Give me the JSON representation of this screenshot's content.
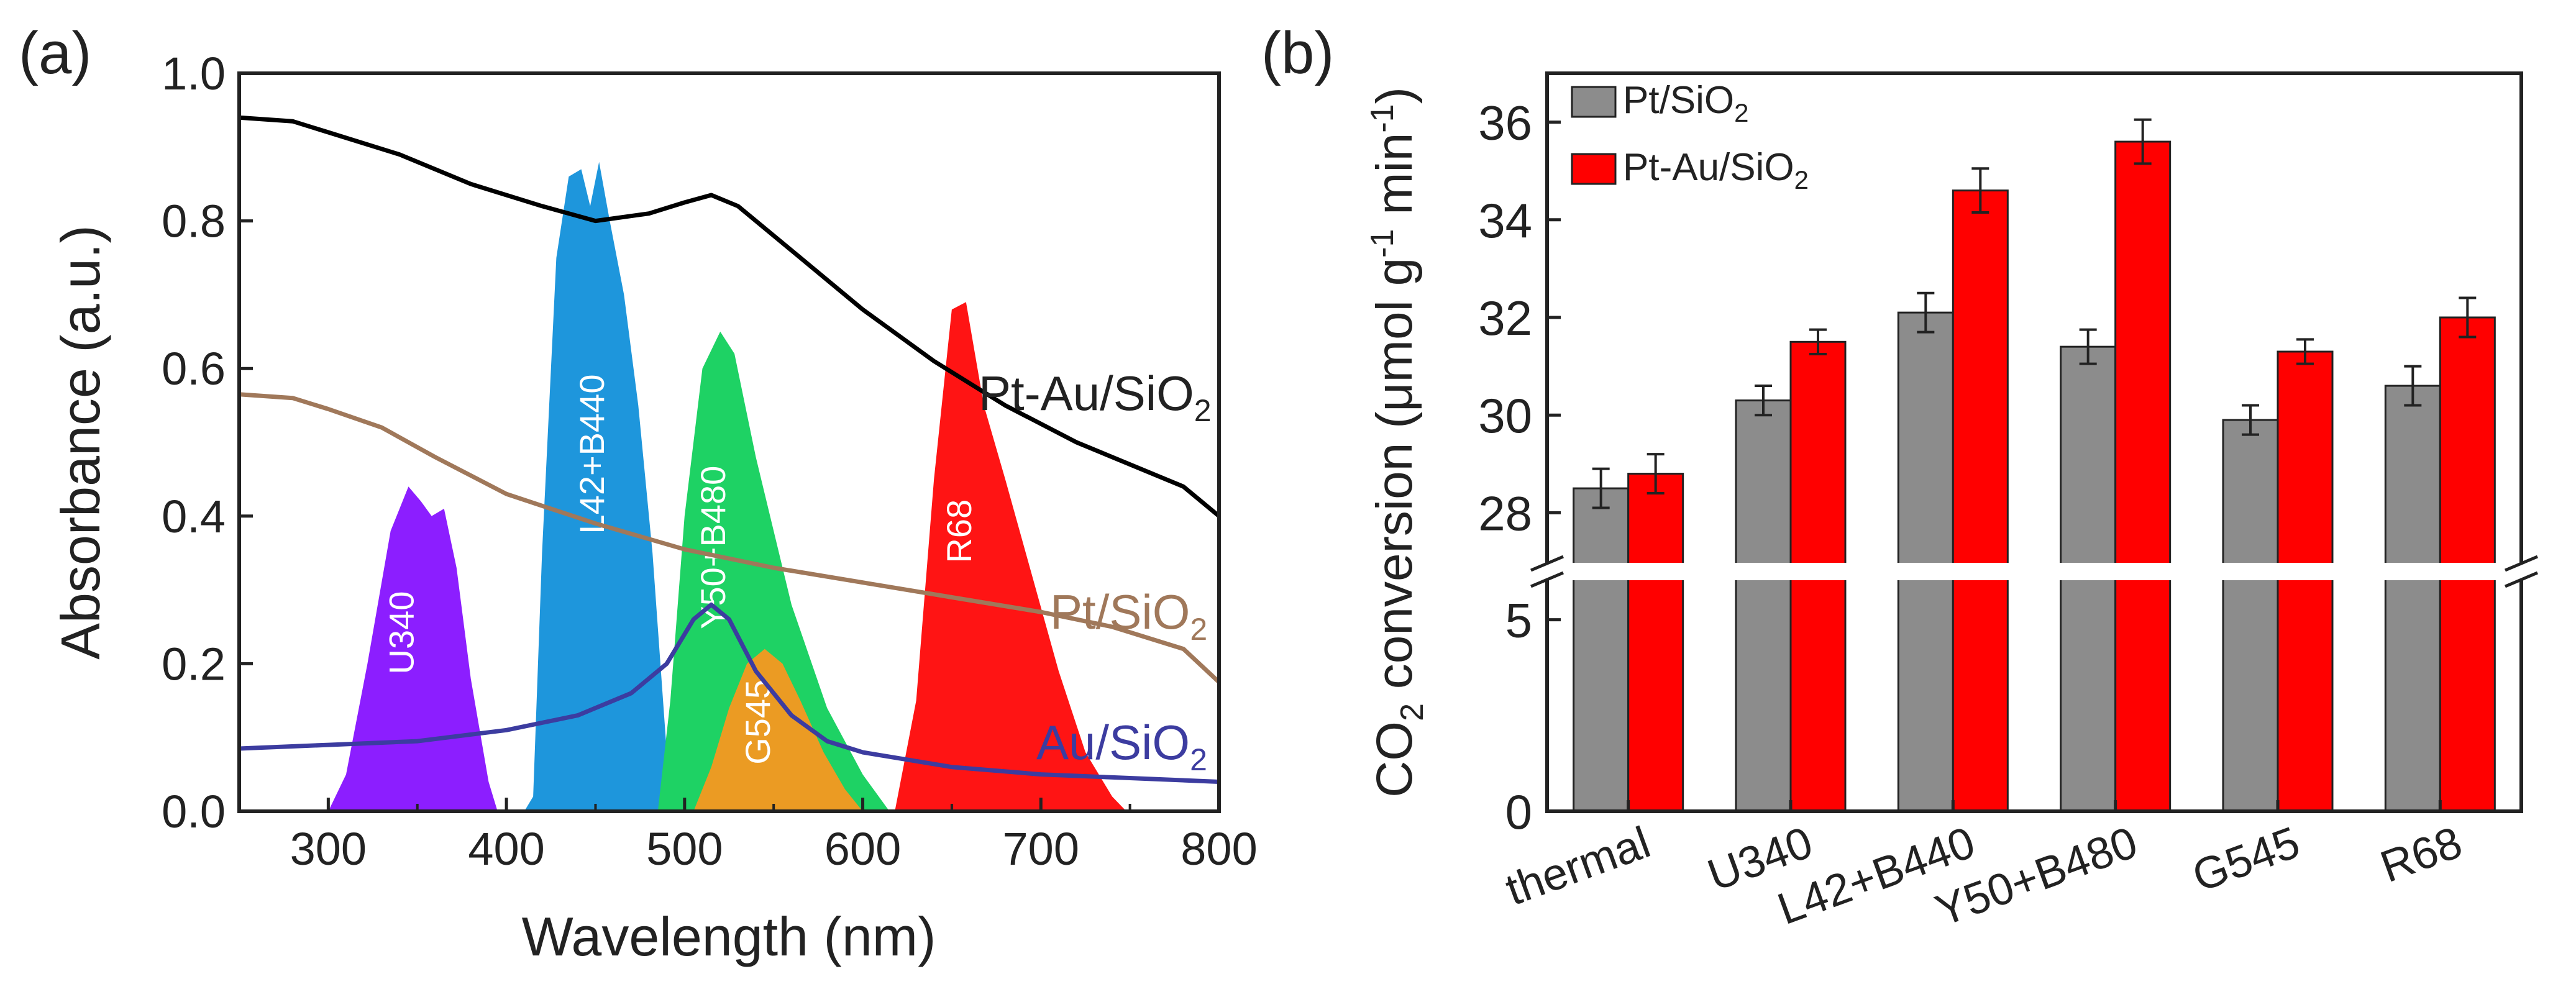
{
  "colors": {
    "pt_au": "#000000",
    "pt": "#A0785A",
    "au": "#3C3CA0",
    "bar_pt": "#8C8C8C",
    "bar_pt_au": "#FF0000"
  },
  "chart_data": [
    {
      "type": "line",
      "panel_label": "(a)",
      "xlabel": "Wavelength (nm)",
      "ylabel": "Absorbance (a.u.)",
      "xlim": [
        250,
        800
      ],
      "ylim": [
        0,
        1.0
      ],
      "xticks": [
        "300",
        "400",
        "500",
        "600",
        "700",
        "800"
      ],
      "yticks": [
        "0.0",
        "0.2",
        "0.4",
        "0.6",
        "0.8",
        "1.0"
      ],
      "series": [
        {
          "name": "Pt-Au/SiO2",
          "label_main": "Pt-Au/SiO",
          "label_sub": "2",
          "color": "#000000",
          "points": [
            [
              250,
              0.94
            ],
            [
              280,
              0.935
            ],
            [
              300,
              0.92
            ],
            [
              340,
              0.89
            ],
            [
              380,
              0.85
            ],
            [
              420,
              0.82
            ],
            [
              450,
              0.8
            ],
            [
              480,
              0.81
            ],
            [
              500,
              0.825
            ],
            [
              515,
              0.835
            ],
            [
              530,
              0.82
            ],
            [
              560,
              0.76
            ],
            [
              600,
              0.68
            ],
            [
              640,
              0.61
            ],
            [
              680,
              0.55
            ],
            [
              720,
              0.5
            ],
            [
              760,
              0.46
            ],
            [
              780,
              0.44
            ],
            [
              800,
              0.4
            ]
          ]
        },
        {
          "name": "Pt/SiO2",
          "label_main": "Pt/SiO",
          "label_sub": "2",
          "color": "#A0785A",
          "points": [
            [
              250,
              0.565
            ],
            [
              280,
              0.56
            ],
            [
              300,
              0.545
            ],
            [
              330,
              0.52
            ],
            [
              360,
              0.48
            ],
            [
              400,
              0.43
            ],
            [
              450,
              0.39
            ],
            [
              500,
              0.355
            ],
            [
              550,
              0.33
            ],
            [
              600,
              0.31
            ],
            [
              650,
              0.29
            ],
            [
              700,
              0.27
            ],
            [
              740,
              0.25
            ],
            [
              780,
              0.22
            ],
            [
              800,
              0.175
            ]
          ]
        },
        {
          "name": "Au/SiO2",
          "label_main": "Au/SiO",
          "label_sub": "2",
          "color": "#3C3CA0",
          "points": [
            [
              250,
              0.085
            ],
            [
              300,
              0.09
            ],
            [
              350,
              0.095
            ],
            [
              400,
              0.11
            ],
            [
              440,
              0.13
            ],
            [
              470,
              0.16
            ],
            [
              490,
              0.2
            ],
            [
              505,
              0.26
            ],
            [
              515,
              0.28
            ],
            [
              525,
              0.26
            ],
            [
              540,
              0.19
            ],
            [
              560,
              0.13
            ],
            [
              580,
              0.095
            ],
            [
              600,
              0.08
            ],
            [
              650,
              0.06
            ],
            [
              700,
              0.05
            ],
            [
              750,
              0.045
            ],
            [
              800,
              0.04
            ]
          ]
        }
      ],
      "light_sources": [
        {
          "name": "U340",
          "color": "#8C1EFF",
          "points": [
            [
              300,
              0
            ],
            [
              310,
              0.05
            ],
            [
              322,
              0.2
            ],
            [
              335,
              0.38
            ],
            [
              345,
              0.44
            ],
            [
              352,
              0.42
            ],
            [
              358,
              0.4
            ],
            [
              365,
              0.41
            ],
            [
              372,
              0.33
            ],
            [
              380,
              0.18
            ],
            [
              390,
              0.04
            ],
            [
              395,
              0
            ]
          ]
        },
        {
          "name": "L42+B440",
          "color": "#1E96DC",
          "points": [
            [
              410,
              0
            ],
            [
              415,
              0.02
            ],
            [
              420,
              0.35
            ],
            [
              428,
              0.75
            ],
            [
              435,
              0.86
            ],
            [
              442,
              0.87
            ],
            [
              447,
              0.82
            ],
            [
              452,
              0.88
            ],
            [
              458,
              0.8
            ],
            [
              466,
              0.7
            ],
            [
              474,
              0.55
            ],
            [
              482,
              0.35
            ],
            [
              490,
              0.08
            ],
            [
              495,
              0
            ]
          ]
        },
        {
          "name": "Y50+B480",
          "color": "#1ED264",
          "points": [
            [
              485,
              0
            ],
            [
              492,
              0.15
            ],
            [
              500,
              0.4
            ],
            [
              510,
              0.6
            ],
            [
              520,
              0.65
            ],
            [
              528,
              0.62
            ],
            [
              540,
              0.48
            ],
            [
              560,
              0.28
            ],
            [
              580,
              0.14
            ],
            [
              600,
              0.05
            ],
            [
              615,
              0
            ]
          ]
        },
        {
          "name": "G545",
          "color": "#EB9B23",
          "points": [
            [
              505,
              0
            ],
            [
              515,
              0.06
            ],
            [
              525,
              0.14
            ],
            [
              535,
              0.2
            ],
            [
              545,
              0.22
            ],
            [
              555,
              0.2
            ],
            [
              565,
              0.15
            ],
            [
              578,
              0.08
            ],
            [
              590,
              0.03
            ],
            [
              600,
              0
            ]
          ]
        },
        {
          "name": "R68",
          "color": "#FF1414",
          "points": [
            [
              618,
              0
            ],
            [
              630,
              0.15
            ],
            [
              640,
              0.45
            ],
            [
              650,
              0.68
            ],
            [
              658,
              0.69
            ],
            [
              668,
              0.55
            ],
            [
              680,
              0.45
            ],
            [
              695,
              0.32
            ],
            [
              710,
              0.19
            ],
            [
              725,
              0.08
            ],
            [
              740,
              0.02
            ],
            [
              748,
              0
            ]
          ]
        }
      ]
    },
    {
      "type": "bar",
      "panel_label": "(b)",
      "ylabel_main": "CO",
      "ylabel_sub": "2",
      "ylabel_rest": " conversion (μmol g",
      "ylabel_sup1": "-1",
      "ylabel_mid": " min",
      "ylabel_sup2": "-1",
      "ylabel_end": ")",
      "categories": [
        "thermal",
        "U340",
        "L42+B440",
        "Y50+B480",
        "G545",
        "R68"
      ],
      "axis_break": true,
      "ylim_upper": [
        27,
        37
      ],
      "ylim_lower": [
        0,
        6
      ],
      "yticks_upper": [
        "28",
        "30",
        "32",
        "34",
        "36"
      ],
      "yticks_lower": [
        "0",
        "5"
      ],
      "series": [
        {
          "name": "Pt/SiO2",
          "legend_main": "Pt/SiO",
          "legend_sub": "2",
          "color": "#8C8C8C",
          "values": [
            28.5,
            30.3,
            32.1,
            31.4,
            29.9,
            30.6
          ],
          "errors": [
            0.4,
            0.3,
            0.4,
            0.35,
            0.3,
            0.4
          ]
        },
        {
          "name": "Pt-Au/SiO2",
          "legend_main": "Pt-Au/SiO",
          "legend_sub": "2",
          "color": "#FF0000",
          "values": [
            28.8,
            31.5,
            34.6,
            35.6,
            31.3,
            32.0
          ],
          "errors": [
            0.4,
            0.25,
            0.45,
            0.45,
            0.25,
            0.4
          ]
        }
      ]
    }
  ]
}
